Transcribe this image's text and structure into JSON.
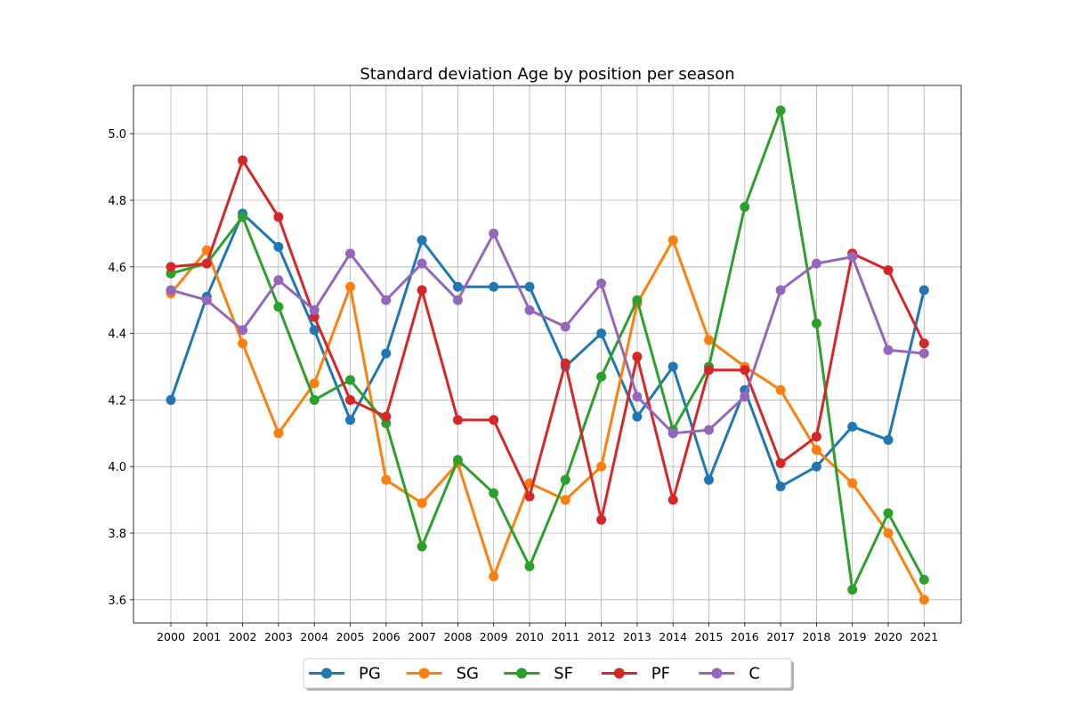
{
  "chart_data": {
    "type": "line",
    "title": "Standard deviation Age by position per season",
    "xlabel": "",
    "ylabel": "",
    "categories": [
      "2000",
      "2001",
      "2002",
      "2003",
      "2004",
      "2005",
      "2006",
      "2007",
      "2008",
      "2009",
      "2010",
      "2011",
      "2012",
      "2013",
      "2014",
      "2015",
      "2016",
      "2017",
      "2018",
      "2019",
      "2020",
      "2021"
    ],
    "ylim": [
      3.53,
      5.145
    ],
    "yticks": [
      "3.6",
      "3.8",
      "4.0",
      "4.2",
      "4.4",
      "4.6",
      "4.8",
      "5.0"
    ],
    "grid": true,
    "legend_position": "bottom-center",
    "series": [
      {
        "name": "PG",
        "color": "#1f77b4",
        "values": [
          4.2,
          4.51,
          4.76,
          4.66,
          4.41,
          4.14,
          4.34,
          4.68,
          4.54,
          4.54,
          4.54,
          4.3,
          4.4,
          4.15,
          4.3,
          3.96,
          4.23,
          3.94,
          4.0,
          4.12,
          4.08,
          4.53
        ]
      },
      {
        "name": "SG",
        "color": "#ff7f0e",
        "values": [
          4.52,
          4.65,
          4.37,
          4.1,
          4.25,
          4.54,
          3.96,
          3.89,
          4.01,
          3.67,
          3.95,
          3.9,
          4.0,
          4.49,
          4.68,
          4.38,
          4.3,
          4.23,
          4.05,
          3.95,
          3.8,
          3.6
        ]
      },
      {
        "name": "SF",
        "color": "#2ca02c",
        "values": [
          4.58,
          4.61,
          4.75,
          4.48,
          4.2,
          4.26,
          4.13,
          3.76,
          4.02,
          3.92,
          3.7,
          3.96,
          4.27,
          4.5,
          4.11,
          4.3,
          4.78,
          5.07,
          4.43,
          3.63,
          3.86,
          3.66
        ]
      },
      {
        "name": "PF",
        "color": "#d62728",
        "values": [
          4.6,
          4.61,
          4.92,
          4.75,
          4.45,
          4.2,
          4.15,
          4.53,
          4.14,
          4.14,
          3.91,
          4.31,
          3.84,
          4.33,
          3.9,
          4.29,
          4.29,
          4.01,
          4.09,
          4.64,
          4.59,
          4.37
        ]
      },
      {
        "name": "C",
        "color": "#9467bd",
        "values": [
          4.53,
          4.5,
          4.41,
          4.56,
          4.47,
          4.64,
          4.5,
          4.61,
          4.5,
          4.7,
          4.47,
          4.42,
          4.55,
          4.21,
          4.1,
          4.11,
          4.21,
          4.53,
          4.61,
          4.63,
          4.35,
          4.34
        ]
      }
    ]
  }
}
